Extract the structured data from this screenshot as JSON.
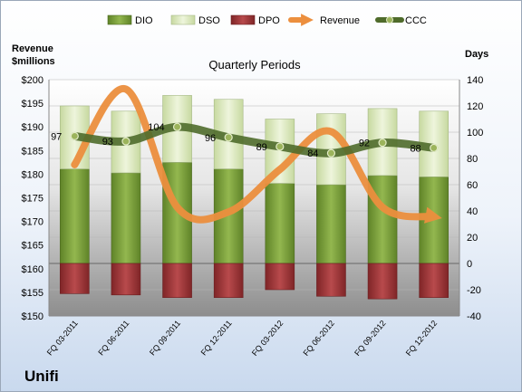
{
  "company": "Unifi",
  "chart_data": {
    "type": "bar",
    "title": "Quarterly Periods",
    "left_axis_label": [
      "Revenue",
      "$millions"
    ],
    "right_axis_label": "Days",
    "categories": [
      "FQ 03-2011",
      "FQ 06-2011",
      "FQ 09-2011",
      "FQ 12-2011",
      "FQ 03-2012",
      "FQ 06-2012",
      "FQ 09-2012",
      "FQ 12-2012"
    ],
    "left_axis": {
      "min": 150,
      "max": 200,
      "step": 5,
      "prefix": "$"
    },
    "right_axis": {
      "min": -40,
      "max": 140,
      "step": 20
    },
    "legend_position": "top",
    "legend": [
      "DIO",
      "DSO",
      "DPO",
      "Revenue",
      "CCC"
    ],
    "series": [
      {
        "name": "DIO",
        "axis": "right",
        "stacked": true,
        "values": [
          72,
          69,
          77,
          72,
          61,
          60,
          67,
          66
        ],
        "color": "#7fa23c"
      },
      {
        "name": "DSO",
        "axis": "right",
        "stacked": true,
        "values": [
          48,
          47,
          51,
          53,
          49,
          54,
          51,
          50
        ],
        "color": "#dde9c0"
      },
      {
        "name": "DPO",
        "axis": "right",
        "values": [
          -23,
          -24,
          -26,
          -26,
          -20,
          -25,
          -27,
          -26
        ],
        "color": "#a1383a"
      },
      {
        "name": "Revenue",
        "axis": "left",
        "type": "line",
        "values": [
          182,
          198,
          173,
          172,
          181,
          189,
          173,
          171
        ],
        "color": "#ec8f3e"
      },
      {
        "name": "CCC",
        "axis": "right",
        "type": "line",
        "values": [
          97,
          93,
          104,
          96,
          89,
          84,
          92,
          88
        ],
        "color": "#4f6b2b"
      }
    ]
  }
}
